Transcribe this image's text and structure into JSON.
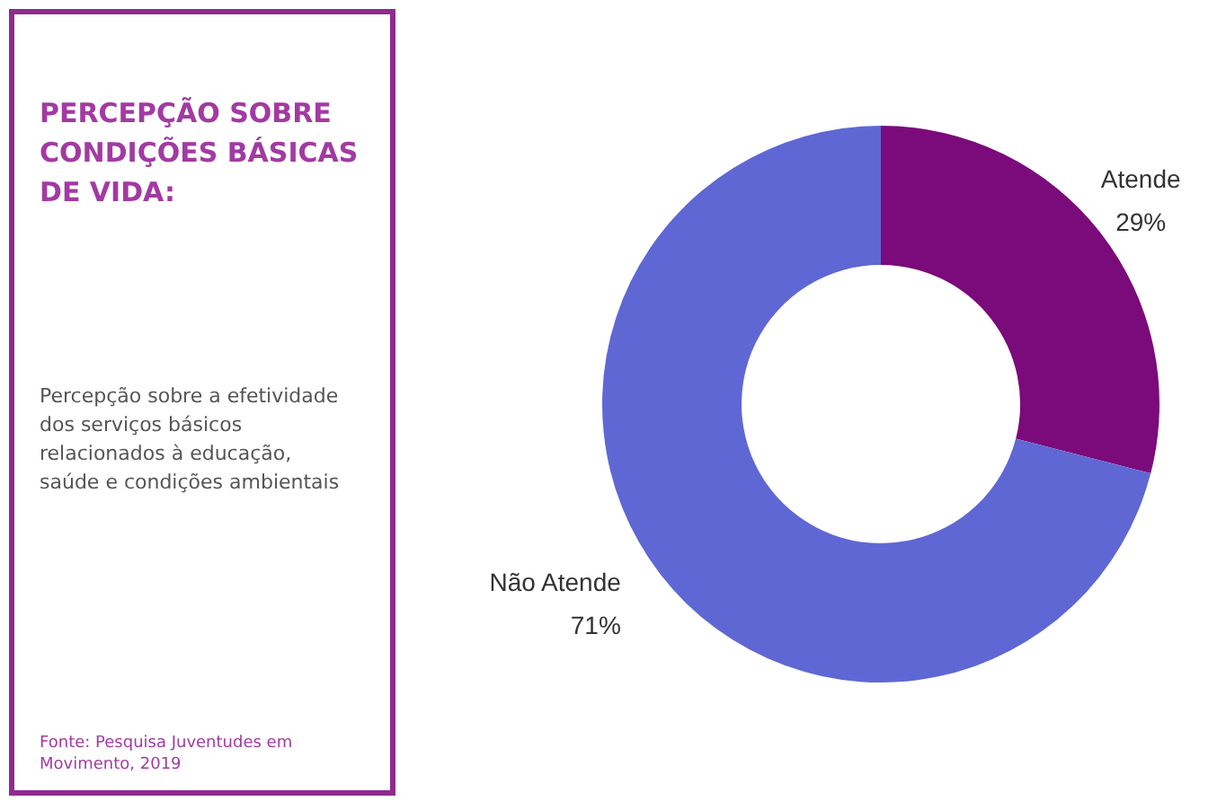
{
  "chart_data": {
    "type": "donut",
    "title": "PERCEPÇÃO SOBRE CONDIÇÕES BÁSICAS DE VIDA:",
    "subtitle": "Percepção sobre a efetividade dos serviços básicos relacionados à educação, saúde e condições ambientais",
    "annotations": [
      "Fonte: Pesquisa Juventudes em Movimento, 2019"
    ],
    "categories": [
      "Atende",
      "Não Atende"
    ],
    "values": [
      29,
      71
    ],
    "colors": [
      "#7b0a7b",
      "#5f67d4"
    ],
    "value_labels": [
      "29%",
      "71%"
    ]
  }
}
